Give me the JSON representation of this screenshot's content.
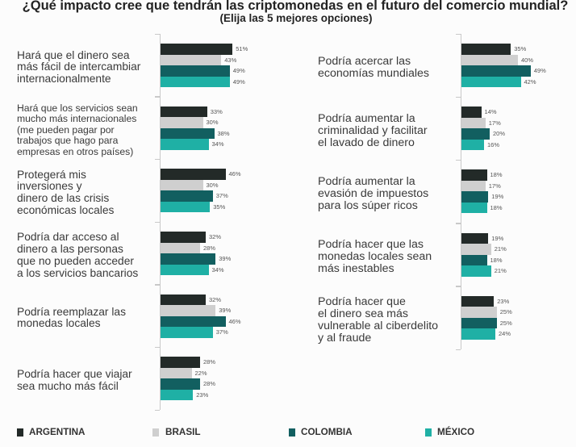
{
  "chart_data": {
    "type": "bar",
    "orientation": "horizontal",
    "title": "¿Qué impacto cree que tendrán las criptomonedas en el futuro del comercio mundial?",
    "subtitle": "(Elija las 5 mejores opciones)",
    "unit": "%",
    "grid": false,
    "legend_position": "bottom",
    "series": [
      {
        "name": "ARGENTINA",
        "color": "#232a28"
      },
      {
        "name": "BRASIL",
        "color": "#cfcfcf"
      },
      {
        "name": "COLOMBIA",
        "color": "#125f60"
      },
      {
        "name": "MÉXICO",
        "color": "#1fb0a5"
      }
    ],
    "panels": [
      {
        "categories": [
          {
            "label": "Hará que el dinero sea\nmás fácil de intercambiar\ninternacionalmente",
            "values": [
              51,
              43,
              49,
              49
            ],
            "value_labels": [
              "51%",
              "43%",
              "49%",
              "49%"
            ]
          },
          {
            "label": "Hará que los servicios sean\nmucho más internacionales\n(me pueden pagar por\ntrabajos que hago para\nempresas en otros países)",
            "values": [
              33,
              30,
              38,
              34
            ],
            "value_labels": [
              "33%",
              "30%",
              "38%",
              "34%"
            ]
          },
          {
            "label": "Protegerá mis\ninversiones y\ndinero de las crisis\neconómicas locales",
            "values": [
              46,
              30,
              37,
              35
            ],
            "value_labels": [
              "46%",
              "30%",
              "37%",
              "35%"
            ]
          },
          {
            "label": "Podría dar acceso al\ndinero a las personas\nque no pueden acceder\na los servicios bancarios",
            "values": [
              32,
              28,
              39,
              34
            ],
            "value_labels": [
              "32%",
              "28%",
              "39%",
              "34%"
            ]
          },
          {
            "label": "Podría reemplazar las\nmonedas locales",
            "values": [
              32,
              39,
              46,
              37
            ],
            "value_labels": [
              "32%",
              "39%",
              "46%",
              "37%"
            ]
          },
          {
            "label": "Podría hacer que viajar\nsea mucho más fácil",
            "values": [
              28,
              22,
              28,
              23
            ],
            "value_labels": [
              "28%",
              "22%",
              "28%",
              "23%"
            ]
          }
        ]
      },
      {
        "categories": [
          {
            "label": "Podría acercar las\neconomías mundiales",
            "values": [
              35,
              40,
              49,
              42
            ],
            "value_labels": [
              "35%",
              "40%",
              "49%",
              "42%"
            ]
          },
          {
            "label": "Podría aumentar la\ncriminalidad y facilitar\nel lavado de dinero",
            "values": [
              14,
              17,
              20,
              16
            ],
            "value_labels": [
              "14%",
              "17%",
              "20%",
              "16%"
            ]
          },
          {
            "label": "Podría aumentar la\nevasión de impuestos\npara los súper ricos",
            "values": [
              18,
              17,
              19,
              18
            ],
            "value_labels": [
              "18%",
              "17%",
              "19%",
              "18%"
            ]
          },
          {
            "label": "Podría hacer que las\nmonedas locales sean\nmás inestables",
            "values": [
              19,
              21,
              18,
              21
            ],
            "value_labels": [
              "19%",
              "21%",
              "18%",
              "21%"
            ]
          },
          {
            "label": "Podría hacer que\nel dinero sea más\nvulnerable al ciberdelito\ny al fraude",
            "values": [
              23,
              25,
              25,
              24
            ],
            "value_labels": [
              "23%",
              "25%",
              "25%",
              "24%"
            ]
          }
        ]
      }
    ]
  }
}
